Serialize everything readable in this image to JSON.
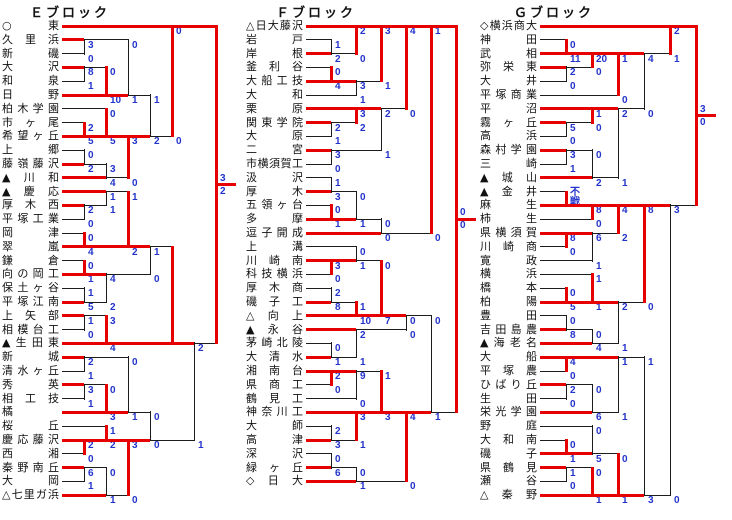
{
  "colors": {
    "winner_line": "#e60000",
    "loser_line": "#1c1c1c",
    "score_text": "#2233cc",
    "background": "#ffffff"
  },
  "legend": {
    "walkover_label": "不戦"
  },
  "blocks": [
    {
      "title": "Ｅブロック",
      "teams": [
        "○東",
        "久里浜",
        "新磯",
        "大沢",
        "和泉",
        "日野",
        "柏木学園",
        "市ヶ尾",
        "希望ヶ丘",
        "上郷",
        "藤嶺藤沢",
        "▲川和",
        "▲慶応",
        "厚木西",
        "平塚工業",
        "岡津",
        "翠嵐",
        "鎌倉",
        "向の岡工",
        "保土ヶ谷",
        "平塚江南",
        "上矢部",
        "相模台工",
        "▲生田東",
        "新城",
        "清水ヶ丘",
        "秀英",
        "相工技",
        "橘",
        "桜丘",
        "慶応藤沢",
        "西湘",
        "秦野南丘",
        "大岡",
        "△七里ガ浜"
      ],
      "matches": [
        [
          "t1",
          "t2",
          "3",
          "0",
          "a"
        ],
        [
          "t3",
          "t4",
          "8",
          "1",
          "a"
        ],
        [
          "m1",
          "t5",
          "0",
          "10",
          "b"
        ],
        [
          "m0",
          "m2",
          "0",
          "1",
          "b"
        ],
        [
          "t7",
          "t8",
          "2",
          "5",
          "b"
        ],
        [
          "t6",
          "m4",
          "0",
          "5",
          "b"
        ],
        [
          "t9",
          "t10",
          "0",
          "2",
          "b"
        ],
        [
          "m6",
          "t11",
          "3",
          "4",
          "b"
        ],
        [
          "m5",
          "m7",
          "3",
          "0",
          "a"
        ],
        [
          "m3",
          "m8",
          "1",
          "2",
          "b"
        ],
        [
          "t0",
          "m9",
          "0",
          "0",
          "a"
        ],
        [
          "t13",
          "t14",
          "2",
          "0",
          "a"
        ],
        [
          "t12",
          "m11",
          "1",
          "1",
          "a"
        ],
        [
          "t15",
          "t16",
          "0",
          "4",
          "b"
        ],
        [
          "m12",
          "m13",
          "1",
          "2",
          "b"
        ],
        [
          "t17",
          "t18",
          "0",
          "1",
          "b"
        ],
        [
          "t19",
          "t20",
          "1",
          "5",
          "b"
        ],
        [
          "m15",
          "m16",
          "4",
          "2",
          "a"
        ],
        [
          "m14",
          "m17",
          "1",
          "0",
          "a"
        ],
        [
          "t21",
          "t22",
          "1",
          "0",
          "a"
        ],
        [
          "m19",
          "t23",
          "3",
          "4",
          "b"
        ],
        [
          "m18",
          "m20",
          null,
          null,
          "b"
        ],
        [
          "t24",
          "t25",
          "2",
          "1",
          "a"
        ],
        [
          "t26",
          "t27",
          "3",
          "1",
          "a"
        ],
        [
          "m23",
          "t28",
          "0",
          "3",
          "b"
        ],
        [
          "m22",
          "m24",
          "0",
          "1",
          "b"
        ],
        [
          "t30",
          "t31",
          "2",
          "0",
          "a"
        ],
        [
          "t29",
          "m26",
          "1",
          "2",
          "b"
        ],
        [
          "t32",
          "t33",
          "6",
          "1",
          "a"
        ],
        [
          "m28",
          "t34",
          "0",
          "1",
          "b"
        ],
        [
          "m27",
          "m29",
          "3",
          "0",
          "a"
        ],
        [
          "m25",
          "m30",
          "0",
          "0",
          "b"
        ],
        [
          "m21",
          "m31",
          "2",
          "1",
          "a"
        ],
        [
          "m10",
          "m32",
          "3",
          "2",
          "a"
        ]
      ]
    },
    {
      "title": "Ｆブロック",
      "teams": [
        "△日大藤沢",
        "岩戸",
        "岸根",
        "釜利谷",
        "大船工技",
        "大和",
        "栗原",
        "関東学院",
        "大原",
        "二宮",
        "市横須賀工",
        "汲沢",
        "厚木",
        "五領ヶ台",
        "多摩",
        "逗子開成",
        "上溝",
        "川崎南",
        "科技横浜",
        "厚木商",
        "磯子工",
        "△向上",
        "▲永谷",
        "茅崎北陵",
        "大清水",
        "湘南台",
        "県商工",
        "鶴見工",
        "神奈川工",
        "大師",
        "高津",
        "深沢",
        "緑ヶ丘",
        "◇日大"
      ],
      "matches": [
        [
          "t1",
          "t2",
          "1",
          "2",
          "b"
        ],
        [
          "t0",
          "m0",
          "2",
          "0",
          "a"
        ],
        [
          "t3",
          "t4",
          "0",
          "4",
          "b"
        ],
        [
          "m2",
          "t5",
          "3",
          "1",
          "a"
        ],
        [
          "m1",
          "m3",
          "3",
          "1",
          "a"
        ],
        [
          "t7",
          "t8",
          "2",
          "1",
          "a"
        ],
        [
          "t6",
          "m5",
          "3",
          "2",
          "a"
        ],
        [
          "t9",
          "t10",
          "3",
          "0",
          "a"
        ],
        [
          "m6",
          "m7",
          "2",
          "1",
          "a"
        ],
        [
          "m4",
          "m8",
          "4",
          "0",
          "a"
        ],
        [
          "t11",
          "t12",
          "1",
          "3",
          "b"
        ],
        [
          "t13",
          "t14",
          "0",
          "1",
          "b"
        ],
        [
          "m10",
          "m11",
          "0",
          "1",
          "b"
        ],
        [
          "m12",
          "t15",
          "0",
          "0",
          "b"
        ],
        [
          "m9",
          "m13",
          "1",
          "0",
          "a"
        ],
        [
          "t17",
          "t18",
          "3",
          "0",
          "a"
        ],
        [
          "t16",
          "m15",
          "0",
          "1",
          "b"
        ],
        [
          "t19",
          "t20",
          "2",
          "8",
          "b"
        ],
        [
          "m17",
          "t21",
          "1",
          "10",
          "b"
        ],
        [
          "m16",
          "m18",
          "0",
          "7",
          "b"
        ],
        [
          "t23",
          "t24",
          "0",
          "1",
          "b"
        ],
        [
          "t22",
          "m20",
          "2",
          "1",
          "a"
        ],
        [
          "m19",
          "m21",
          "0",
          "0",
          "a"
        ],
        [
          "t25",
          "t26",
          "2",
          "0",
          "a"
        ],
        [
          "m23",
          "t27",
          "9",
          "0",
          "a"
        ],
        [
          "t29",
          "t30",
          "2",
          "3",
          "b"
        ],
        [
          "t28",
          "m25",
          "3",
          "1",
          "a"
        ],
        [
          "m24",
          "m26",
          "1",
          "3",
          "b"
        ],
        [
          "t31",
          "t32",
          "0",
          "6",
          "b"
        ],
        [
          "m28",
          "t33",
          "0",
          "1",
          "b"
        ],
        [
          "m27",
          "m29",
          "4",
          "0",
          "a"
        ],
        [
          "m22",
          "m30",
          "0",
          "1",
          "b"
        ],
        [
          "m14",
          "m31",
          "0",
          "0",
          "a"
        ]
      ]
    },
    {
      "title": "Ｇブロック",
      "teams": [
        "◇横浜商大",
        "神田",
        "武相",
        "弥栄東",
        "大井",
        "平塚商業",
        "平沼",
        "霧ヶ丘",
        "高浜",
        "森村学園",
        "三崎",
        "▲城山",
        "▲金井",
        "麻生",
        "柿生",
        "県横須賀",
        "川崎商",
        "寛政",
        "横浜",
        "橋本",
        "柏陽",
        "豊田",
        "吉田島農",
        "▲海老名",
        "大船",
        "平塚農",
        "ひばり丘",
        "生田",
        "栄光学園",
        "野庭",
        "大和南",
        "磯子",
        "県鶴見",
        "瀬谷",
        "△秦野"
      ],
      "matches": [
        [
          "t1",
          "t2",
          "0",
          "11",
          "b"
        ],
        [
          "t3",
          "t4",
          "2",
          "0",
          "a"
        ],
        [
          "m0",
          "m1",
          "20",
          "0",
          "a"
        ],
        [
          "m2",
          "t5",
          "1",
          "0",
          "a"
        ],
        [
          "t7",
          "t8",
          "5",
          "0",
          "a"
        ],
        [
          "t6",
          "m4",
          "1",
          "0",
          "a"
        ],
        [
          "t9",
          "t10",
          "3",
          "1",
          "a"
        ],
        [
          "m6",
          "t11",
          "0",
          "2",
          "b"
        ],
        [
          "m5",
          "m7",
          "2",
          "1",
          "a"
        ],
        [
          "m3",
          "m8",
          "4",
          "0",
          "a"
        ],
        [
          "t0",
          "m9",
          "2",
          "1",
          "a"
        ],
        [
          "t12",
          "t13",
          "不戦",
          null,
          "b"
        ],
        [
          "m11",
          "t14",
          "8",
          "0",
          "a"
        ],
        [
          "t15",
          "t16",
          "8",
          "0",
          "a"
        ],
        [
          "m13",
          "t17",
          "6",
          "1",
          "a"
        ],
        [
          "m12",
          "m14",
          "4",
          "2",
          "a"
        ],
        [
          "t19",
          "t20",
          "0",
          "5",
          "b"
        ],
        [
          "t18",
          "m16",
          "1",
          "1",
          "b"
        ],
        [
          "t21",
          "t22",
          "0",
          "8",
          "b"
        ],
        [
          "m18",
          "t23",
          "0",
          "4",
          "b"
        ],
        [
          "m17",
          "m19",
          "2",
          "1",
          "a"
        ],
        [
          "m15",
          "m20",
          "8",
          "0",
          "a"
        ],
        [
          "t24",
          "t25",
          "4",
          "0",
          "a"
        ],
        [
          "t26",
          "t27",
          "2",
          "0",
          "a"
        ],
        [
          "m23",
          "t28",
          "0",
          "6",
          "b"
        ],
        [
          "m22",
          "m24",
          "1",
          "1",
          "a"
        ],
        [
          "t30",
          "t31",
          "0",
          "1",
          "b"
        ],
        [
          "t29",
          "m26",
          "0",
          "5",
          "b"
        ],
        [
          "t32",
          "t33",
          "1",
          "0",
          "a"
        ],
        [
          "m28",
          "t34",
          "0",
          "1",
          "b"
        ],
        [
          "m27",
          "m29",
          "0",
          "1",
          "b"
        ],
        [
          "m25",
          "m30",
          "1",
          "3",
          "b"
        ],
        [
          "m21",
          "m31",
          "3",
          "0",
          "a"
        ],
        [
          "m10",
          "m32",
          "3",
          "0",
          "a"
        ]
      ]
    }
  ]
}
